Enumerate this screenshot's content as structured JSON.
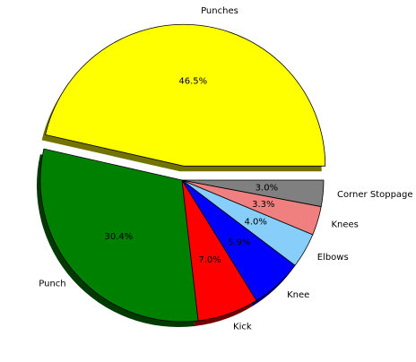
{
  "chart_data": {
    "type": "pie",
    "title": "",
    "categories": [
      "Punches",
      "Punch",
      "Kick",
      "Knee",
      "Elbows",
      "Knees",
      "Corner Stoppage"
    ],
    "values": [
      46.5,
      30.4,
      7.0,
      5.9,
      4.0,
      3.3,
      3.0
    ],
    "percent_labels": [
      "46.5%",
      "30.4%",
      "7.0%",
      "5.9%",
      "4.0%",
      "3.3%",
      "3.0%"
    ],
    "colors": [
      "#ffff00",
      "#008000",
      "#ff0000",
      "#0000ff",
      "#87cefa",
      "#f08080",
      "#808080"
    ],
    "explode": [
      0.1,
      0,
      0,
      0,
      0,
      0,
      0
    ],
    "start_angle_deg": 0,
    "direction": "counterclockwise",
    "shadow": true,
    "legend": "none"
  }
}
